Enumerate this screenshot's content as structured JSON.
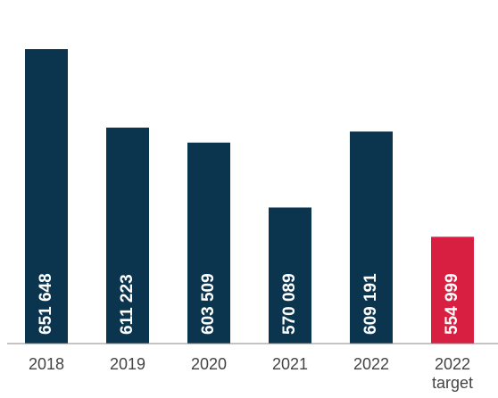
{
  "chart_data": {
    "type": "bar",
    "categories": [
      "2018",
      "2019",
      "2020",
      "2021",
      "2022",
      "2022 target"
    ],
    "values": [
      651648,
      611223,
      603509,
      570089,
      609191,
      554999
    ],
    "value_labels": [
      "651 648",
      "611 223",
      "603 509",
      "570 089",
      "609 191",
      "554 999"
    ],
    "colors": [
      "#0b354f",
      "#0b354f",
      "#0b354f",
      "#0b354f",
      "#0b354f",
      "#d81f41"
    ],
    "ylim": [
      500000,
      665000
    ]
  }
}
